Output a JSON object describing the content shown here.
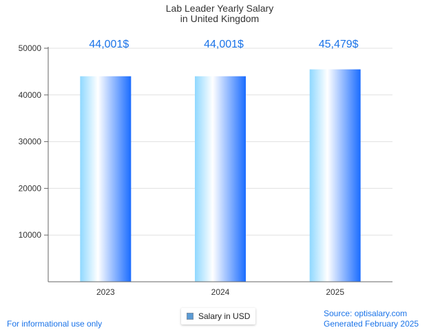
{
  "chart_data": {
    "type": "bar",
    "title": [
      "Lab Leader Yearly Salary",
      "in United Kingdom"
    ],
    "categories": [
      "2023",
      "2024",
      "2025"
    ],
    "series": [
      {
        "name": "Salary in USD",
        "values": [
          44001,
          44001,
          45479
        ],
        "labels": [
          "44,001$",
          "44,001$",
          "45,479$"
        ]
      }
    ],
    "ylim": [
      0,
      50000
    ],
    "yticks": [
      "10000",
      "20000",
      "30000",
      "40000",
      "50000"
    ],
    "grid": true,
    "legend_position": "bottom-center"
  },
  "colors": {
    "bar_left": "#8fd8ff",
    "bar_mid": "#ffffff",
    "bar_right": "#1a6cff",
    "label": "#1a73e8"
  },
  "footer": {
    "left": "For informational use only",
    "source": "Source: optisalary.com",
    "generated": "Generated February 2025"
  }
}
